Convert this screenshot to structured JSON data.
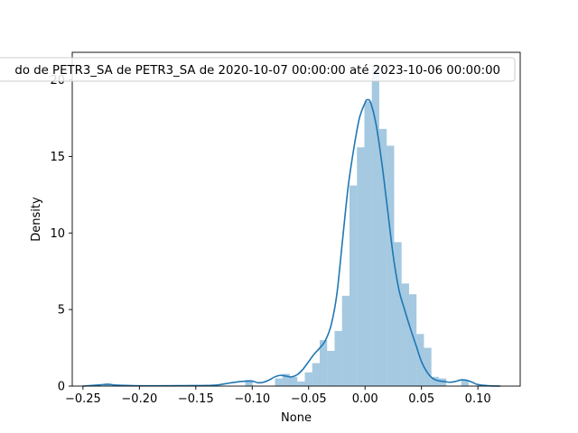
{
  "chart_data": {
    "type": "histogram_kde",
    "xlabel": "None",
    "ylabel": "Density",
    "legend_text": "do de PETR3_SA de PETR3_SA de 2020-10-07 00:00:00 até 2023-10-06 00:00:00",
    "legend_position": "upper center (clipped at left)",
    "xlim": [
      -0.2595,
      0.1375
    ],
    "ylim": [
      0,
      21.8
    ],
    "x_ticks": [
      -0.25,
      -0.2,
      -0.15,
      -0.1,
      -0.05,
      0.0,
      0.05,
      0.1
    ],
    "x_tick_labels": [
      "−0.25",
      "−0.20",
      "−0.15",
      "−0.10",
      "−0.05",
      "0.00",
      "0.05",
      "0.10"
    ],
    "y_ticks": [
      0,
      5,
      10,
      15,
      20
    ],
    "y_tick_labels": [
      "0",
      "5",
      "10",
      "15",
      "20"
    ],
    "grid": false,
    "colors": {
      "bars": "#1f77b4",
      "bars_opacity": 0.4,
      "kde": "#1f77b4"
    },
    "histogram": {
      "bin_width": 0.0066,
      "bins_left": [
        -0.2318,
        -0.1062,
        -0.0798,
        -0.0732,
        -0.0666,
        -0.06,
        -0.0534,
        -0.0468,
        -0.0402,
        -0.0336,
        -0.027,
        -0.0204,
        -0.0138,
        -0.0072,
        -0.0006,
        0.006,
        0.0126,
        0.0192,
        0.0258,
        0.0324,
        0.039,
        0.0456,
        0.0522,
        0.0588,
        0.0654,
        0.0852
      ],
      "densities": [
        0.15,
        0.4,
        0.5,
        0.8,
        0.6,
        0.3,
        0.9,
        1.5,
        3.0,
        2.3,
        3.6,
        5.9,
        13.1,
        15.6,
        18.6,
        20.8,
        16.8,
        15.7,
        9.4,
        6.7,
        6.0,
        3.4,
        2.5,
        0.6,
        0.5,
        0.4
      ]
    },
    "kde": {
      "x": [
        -0.25,
        -0.235,
        -0.228,
        -0.22,
        -0.2,
        -0.18,
        -0.16,
        -0.14,
        -0.13,
        -0.12,
        -0.11,
        -0.1,
        -0.095,
        -0.09,
        -0.085,
        -0.08,
        -0.075,
        -0.07,
        -0.065,
        -0.06,
        -0.055,
        -0.05,
        -0.045,
        -0.04,
        -0.035,
        -0.03,
        -0.025,
        -0.02,
        -0.015,
        -0.01,
        -0.005,
        0.0,
        0.002,
        0.005,
        0.01,
        0.015,
        0.02,
        0.025,
        0.03,
        0.035,
        0.04,
        0.045,
        0.05,
        0.055,
        0.06,
        0.065,
        0.07,
        0.075,
        0.08,
        0.085,
        0.09,
        0.095,
        0.1,
        0.11,
        0.12
      ],
      "y": [
        0.0,
        0.08,
        0.12,
        0.06,
        0.02,
        0.02,
        0.03,
        0.04,
        0.08,
        0.2,
        0.3,
        0.32,
        0.22,
        0.25,
        0.4,
        0.6,
        0.7,
        0.65,
        0.6,
        0.75,
        1.1,
        1.6,
        2.1,
        2.5,
        3.0,
        4.0,
        6.0,
        9.5,
        13.0,
        15.5,
        17.5,
        18.5,
        18.7,
        18.5,
        17.0,
        14.5,
        11.5,
        8.5,
        6.3,
        5.0,
        3.8,
        2.7,
        1.6,
        0.9,
        0.5,
        0.35,
        0.3,
        0.25,
        0.3,
        0.4,
        0.38,
        0.25,
        0.1,
        0.02,
        0.0
      ]
    }
  }
}
